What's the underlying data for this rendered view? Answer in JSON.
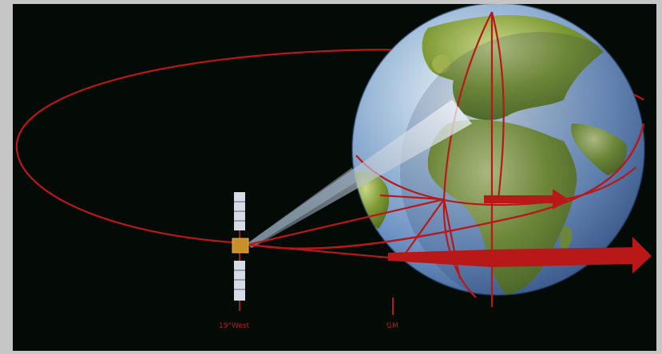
{
  "labels": {
    "satellite_longitude": "19°West",
    "meridian": "GM"
  },
  "colors": {
    "space": "#040a06",
    "border": "#c6c6c6",
    "orbit_red": "#b81818",
    "ocean": "#6f93c4",
    "land": "#6f8f2a",
    "beam": "#cfe0f0"
  }
}
